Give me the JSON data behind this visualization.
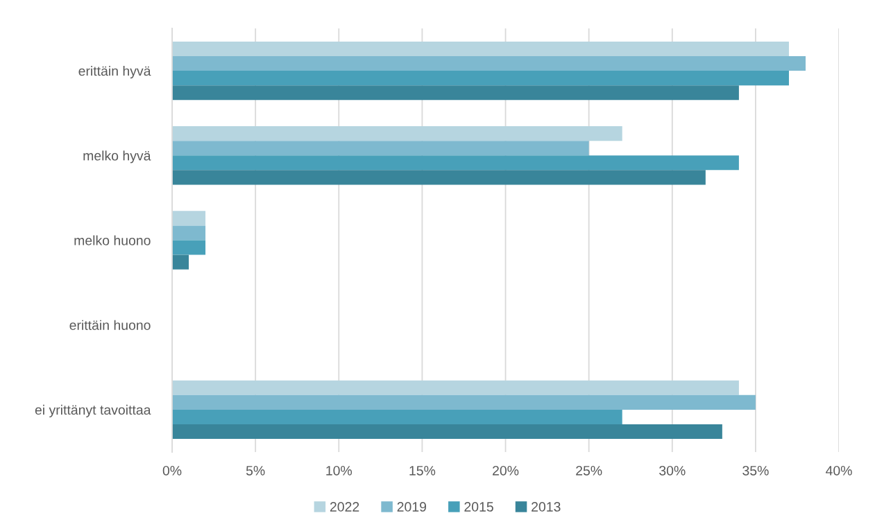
{
  "chart_data": {
    "type": "bar",
    "orientation": "horizontal",
    "categories": [
      "erittäin hyvä",
      "melko hyvä",
      "melko huono",
      "erittäin huono",
      "ei yrittänyt tavoittaa"
    ],
    "series": [
      {
        "name": "2022",
        "color": "#b6d5e0",
        "values": [
          37,
          27,
          2,
          null,
          34
        ]
      },
      {
        "name": "2019",
        "color": "#7eb9cf",
        "values": [
          38,
          25,
          2,
          null,
          35
        ]
      },
      {
        "name": "2015",
        "color": "#48a0b9",
        "values": [
          37,
          34,
          2,
          null,
          27
        ]
      },
      {
        "name": "2013",
        "color": "#39859a",
        "values": [
          34,
          32,
          1,
          null,
          33
        ]
      }
    ],
    "xlim": [
      0,
      40
    ],
    "xticks": [
      {
        "value": 0,
        "label": "0%"
      },
      {
        "value": 5,
        "label": "5%"
      },
      {
        "value": 10,
        "label": "10%"
      },
      {
        "value": 15,
        "label": "15%"
      },
      {
        "value": 20,
        "label": "20%"
      },
      {
        "value": 25,
        "label": "25%"
      },
      {
        "value": 30,
        "label": "30%"
      },
      {
        "value": 35,
        "label": "35%"
      },
      {
        "value": 40,
        "label": "40%"
      }
    ],
    "grid": "x",
    "legend": "bottom"
  }
}
